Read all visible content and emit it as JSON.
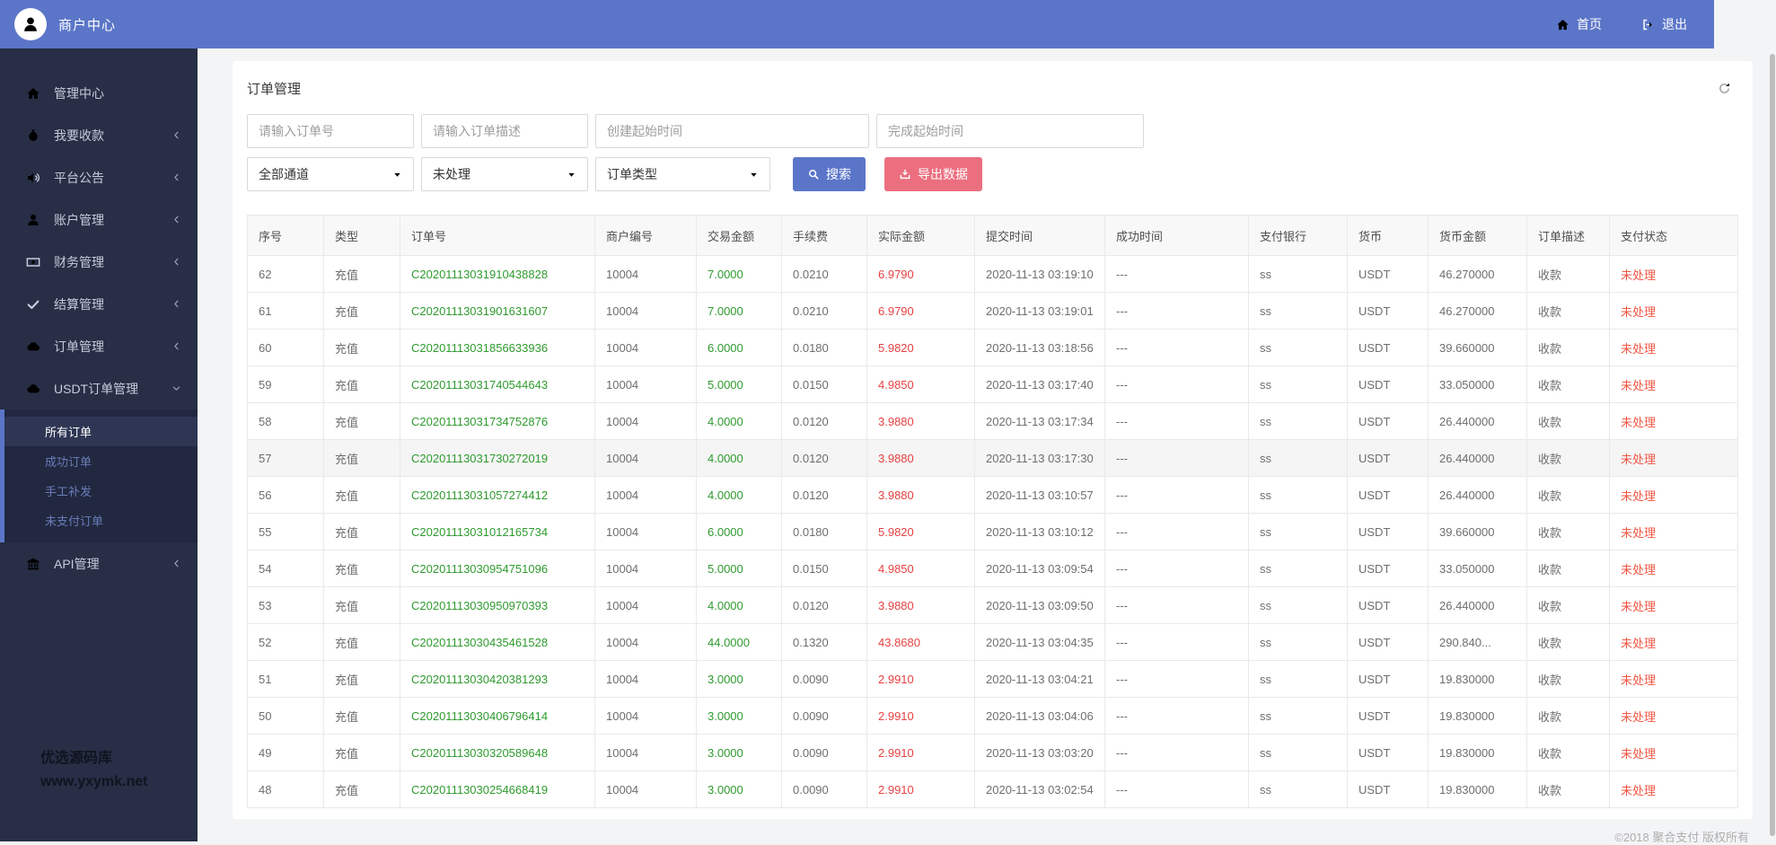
{
  "header": {
    "title": "商户中心",
    "nav": [
      {
        "icon": "home-icon",
        "label": "首页"
      },
      {
        "icon": "logout-icon",
        "label": "退出"
      }
    ]
  },
  "sidebar": {
    "items": [
      {
        "icon": "home-icon",
        "label": "管理中心",
        "chevron": null
      },
      {
        "icon": "moneybag-icon",
        "label": "我要收款",
        "chevron": "left"
      },
      {
        "icon": "announcement-icon",
        "label": "平台公告",
        "chevron": "left"
      },
      {
        "icon": "user-icon",
        "label": "账户管理",
        "chevron": "left"
      },
      {
        "icon": "finance-icon",
        "label": "财务管理",
        "chevron": "left"
      },
      {
        "icon": "settlement-icon",
        "label": "结算管理",
        "chevron": "left"
      },
      {
        "icon": "cloud-icon",
        "label": "订单管理",
        "chevron": "left"
      },
      {
        "icon": "cloud-icon",
        "label": "USDT订单管理",
        "chevron": "down",
        "expanded": true,
        "children": [
          {
            "label": "所有订单",
            "active": true
          },
          {
            "label": "成功订单",
            "active": false
          },
          {
            "label": "手工补发",
            "active": false
          },
          {
            "label": "未支付订单",
            "active": false
          }
        ]
      },
      {
        "icon": "bank-icon",
        "label": "API管理",
        "chevron": "left"
      }
    ],
    "watermark": {
      "line1": "优选源码库",
      "line2": "www.yxymk.net"
    }
  },
  "page": {
    "title": "订单管理",
    "filters": {
      "inputs": [
        {
          "placeholder": "请输入订单号"
        },
        {
          "placeholder": "请输入订单描述"
        },
        {
          "placeholder": "创建起始时间"
        },
        {
          "placeholder": "完成起始时间"
        }
      ],
      "selects": [
        {
          "value": "全部通道"
        },
        {
          "value": "未处理"
        },
        {
          "value": "订单类型"
        }
      ],
      "search_label": "搜索",
      "export_label": "导出数据"
    },
    "table": {
      "headers": [
        "序号",
        "类型",
        "订单号",
        "商户编号",
        "交易金额",
        "手续费",
        "实际金额",
        "提交时间",
        "成功时间",
        "支付银行",
        "货币",
        "货币金额",
        "订单描述",
        "支付状态"
      ],
      "rows": [
        {
          "highlighted": false,
          "cells": [
            "62",
            "充值",
            "C20201113031910438828",
            "10004",
            "7.0000",
            "0.0210",
            "6.9790",
            "2020-11-13 03:19:10",
            "---",
            "ss",
            "USDT",
            "46.270000",
            "收款",
            "未处理"
          ]
        },
        {
          "highlighted": false,
          "cells": [
            "61",
            "充值",
            "C20201113031901631607",
            "10004",
            "7.0000",
            "0.0210",
            "6.9790",
            "2020-11-13 03:19:01",
            "---",
            "ss",
            "USDT",
            "46.270000",
            "收款",
            "未处理"
          ]
        },
        {
          "highlighted": false,
          "cells": [
            "60",
            "充值",
            "C20201113031856633936",
            "10004",
            "6.0000",
            "0.0180",
            "5.9820",
            "2020-11-13 03:18:56",
            "---",
            "ss",
            "USDT",
            "39.660000",
            "收款",
            "未处理"
          ]
        },
        {
          "highlighted": false,
          "cells": [
            "59",
            "充值",
            "C20201113031740544643",
            "10004",
            "5.0000",
            "0.0150",
            "4.9850",
            "2020-11-13 03:17:40",
            "---",
            "ss",
            "USDT",
            "33.050000",
            "收款",
            "未处理"
          ]
        },
        {
          "highlighted": false,
          "cells": [
            "58",
            "充值",
            "C20201113031734752876",
            "10004",
            "4.0000",
            "0.0120",
            "3.9880",
            "2020-11-13 03:17:34",
            "---",
            "ss",
            "USDT",
            "26.440000",
            "收款",
            "未处理"
          ]
        },
        {
          "highlighted": true,
          "cells": [
            "57",
            "充值",
            "C20201113031730272019",
            "10004",
            "4.0000",
            "0.0120",
            "3.9880",
            "2020-11-13 03:17:30",
            "---",
            "ss",
            "USDT",
            "26.440000",
            "收款",
            "未处理"
          ]
        },
        {
          "highlighted": false,
          "cells": [
            "56",
            "充值",
            "C20201113031057274412",
            "10004",
            "4.0000",
            "0.0120",
            "3.9880",
            "2020-11-13 03:10:57",
            "---",
            "ss",
            "USDT",
            "26.440000",
            "收款",
            "未处理"
          ]
        },
        {
          "highlighted": false,
          "cells": [
            "55",
            "充值",
            "C20201113031012165734",
            "10004",
            "6.0000",
            "0.0180",
            "5.9820",
            "2020-11-13 03:10:12",
            "---",
            "ss",
            "USDT",
            "39.660000",
            "收款",
            "未处理"
          ]
        },
        {
          "highlighted": false,
          "cells": [
            "54",
            "充值",
            "C20201113030954751096",
            "10004",
            "5.0000",
            "0.0150",
            "4.9850",
            "2020-11-13 03:09:54",
            "---",
            "ss",
            "USDT",
            "33.050000",
            "收款",
            "未处理"
          ]
        },
        {
          "highlighted": false,
          "cells": [
            "53",
            "充值",
            "C20201113030950970393",
            "10004",
            "4.0000",
            "0.0120",
            "3.9880",
            "2020-11-13 03:09:50",
            "---",
            "ss",
            "USDT",
            "26.440000",
            "收款",
            "未处理"
          ]
        },
        {
          "highlighted": false,
          "cells": [
            "52",
            "充值",
            "C20201113030435461528",
            "10004",
            "44.0000",
            "0.1320",
            "43.8680",
            "2020-11-13 03:04:35",
            "---",
            "ss",
            "USDT",
            "290.840...",
            "收款",
            "未处理"
          ]
        },
        {
          "highlighted": false,
          "cells": [
            "51",
            "充值",
            "C20201113030420381293",
            "10004",
            "3.0000",
            "0.0090",
            "2.9910",
            "2020-11-13 03:04:21",
            "---",
            "ss",
            "USDT",
            "19.830000",
            "收款",
            "未处理"
          ]
        },
        {
          "highlighted": false,
          "cells": [
            "50",
            "充值",
            "C20201113030406796414",
            "10004",
            "3.0000",
            "0.0090",
            "2.9910",
            "2020-11-13 03:04:06",
            "---",
            "ss",
            "USDT",
            "19.830000",
            "收款",
            "未处理"
          ]
        },
        {
          "highlighted": false,
          "cells": [
            "49",
            "充值",
            "C20201113030320589648",
            "10004",
            "3.0000",
            "0.0090",
            "2.9910",
            "2020-11-13 03:03:20",
            "---",
            "ss",
            "USDT",
            "19.830000",
            "收款",
            "未处理"
          ]
        },
        {
          "highlighted": false,
          "cells": [
            "48",
            "充值",
            "C20201113030254668419",
            "10004",
            "3.0000",
            "0.0090",
            "2.9910",
            "2020-11-13 03:02:54",
            "---",
            "ss",
            "USDT",
            "19.830000",
            "收款",
            "未处理"
          ]
        }
      ]
    },
    "footer": "©2018 聚合支付 版权所有"
  },
  "colors": {
    "accent_blue": "#5b76c8",
    "export_button_red": "#ec6f7f",
    "positive_green": "#2f9a2f",
    "amount_red": "#e64242",
    "status_red": "#f25643",
    "sidebar_bg": "#272e45"
  }
}
